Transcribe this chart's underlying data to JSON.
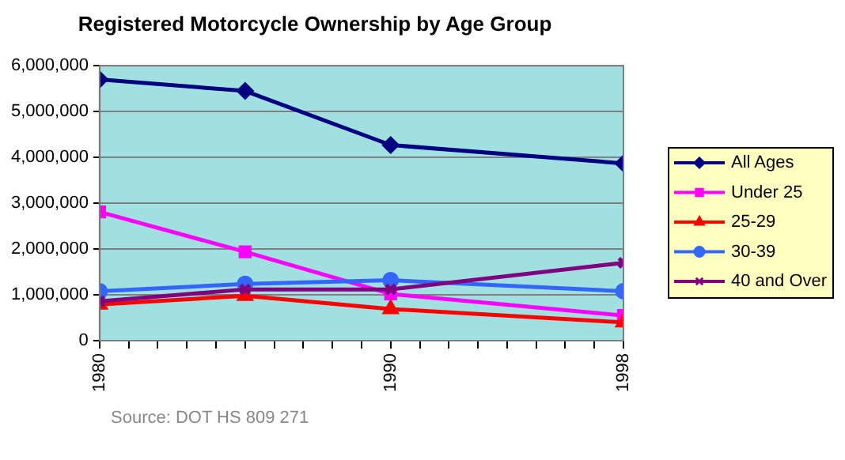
{
  "chart_data": {
    "type": "line",
    "title": "Registered Motorcycle Ownership by Age Group",
    "x": [
      1980,
      1985,
      1990,
      1998
    ],
    "series": [
      {
        "name": "All Ages",
        "color": "#000080",
        "marker": "diamond",
        "values": [
          5700000,
          5450000,
          4270000,
          3870000
        ]
      },
      {
        "name": "Under 25",
        "color": "#ff00ff",
        "marker": "square",
        "values": [
          2810000,
          1940000,
          1020000,
          550000
        ]
      },
      {
        "name": "25-29",
        "color": "#ff0000",
        "marker": "triangle",
        "values": [
          790000,
          980000,
          690000,
          400000
        ]
      },
      {
        "name": "30-39",
        "color": "#3366ff",
        "marker": "circle",
        "values": [
          1080000,
          1240000,
          1320000,
          1080000
        ]
      },
      {
        "name": "40 and Over",
        "color": "#800080",
        "marker": "cross",
        "values": [
          860000,
          1120000,
          1120000,
          1700000
        ]
      }
    ],
    "xlim": [
      1980,
      1998
    ],
    "xticks": [
      1980,
      {
        "value": 1981,
        "label": null
      },
      {
        "value": 1982,
        "label": null
      },
      {
        "value": 1983,
        "label": null
      },
      {
        "value": 1984,
        "label": null
      },
      {
        "value": 1985,
        "label": null
      },
      {
        "value": 1986,
        "label": null
      },
      {
        "value": 1987,
        "label": null
      },
      {
        "value": 1988,
        "label": null
      },
      {
        "value": 1989,
        "label": null
      },
      1990,
      {
        "value": 1991,
        "label": null
      },
      {
        "value": 1992,
        "label": null
      },
      {
        "value": 1993,
        "label": null
      },
      {
        "value": 1994,
        "label": null
      },
      {
        "value": 1995,
        "label": null
      },
      {
        "value": 1996,
        "label": null
      },
      {
        "value": 1997,
        "label": null
      },
      1998
    ],
    "ylim": [
      0,
      6000000
    ],
    "yticks": [
      {
        "value": 0,
        "label": "0"
      },
      {
        "value": 1000000,
        "label": "1,000,000"
      },
      {
        "value": 2000000,
        "label": "2,000,000"
      },
      {
        "value": 3000000,
        "label": "3,000,000"
      },
      {
        "value": 4000000,
        "label": "4,000,000"
      },
      {
        "value": 5000000,
        "label": "5,000,000"
      },
      {
        "value": 6000000,
        "label": "6,000,000"
      }
    ],
    "grid": "y",
    "legend": "right",
    "line_style": "solid",
    "annotations": [
      "Source: DOT HS 809 271"
    ]
  }
}
